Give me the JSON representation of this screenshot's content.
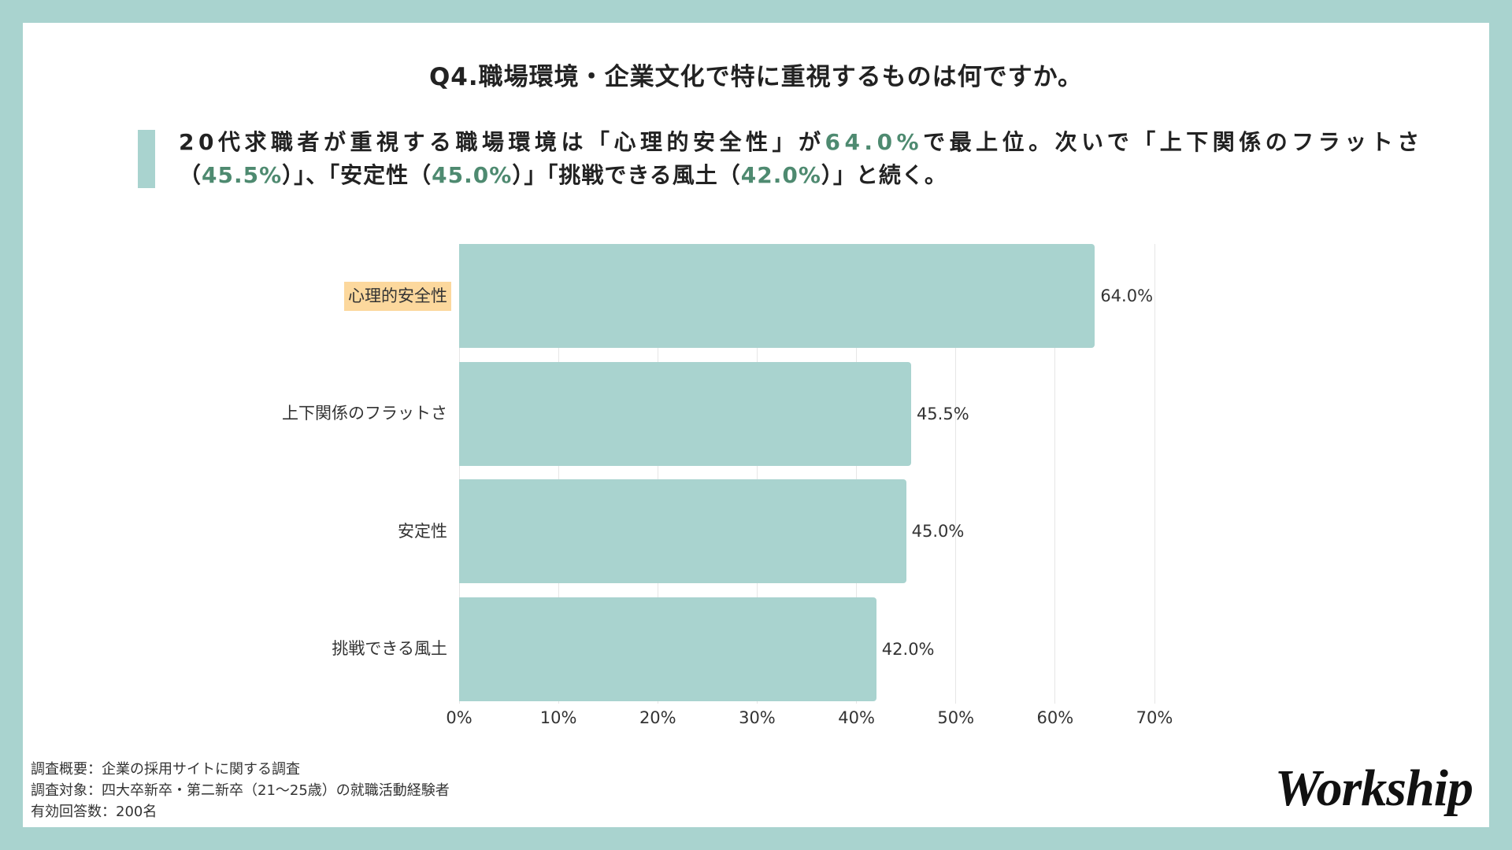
{
  "colors": {
    "frame": "#a9d3cf",
    "panel": "#ffffff",
    "summary_accent": "#a9d3cf",
    "emphasis": "#4e8a70",
    "text": "#222222"
  },
  "summary": {
    "lines": [
      [
        {
          "text": "20代求職者が重視する職場環境は「心理的安全性」が",
          "emphasis": false
        },
        {
          "text": "64.0%",
          "emphasis": true
        },
        {
          "text": "で最上位。次いで「上下関係のフラットさ",
          "emphasis": false
        }
      ],
      [
        {
          "text": "（",
          "emphasis": false
        },
        {
          "text": "45.5%",
          "emphasis": true
        },
        {
          "text": "）」、「安定性（",
          "emphasis": false
        },
        {
          "text": "45.0%",
          "emphasis": true
        },
        {
          "text": "）」「挑戦できる風土（",
          "emphasis": false
        },
        {
          "text": "42.0%",
          "emphasis": true
        },
        {
          "text": "）」と続く。",
          "emphasis": false
        }
      ]
    ]
  },
  "chart_data": {
    "type": "bar",
    "orientation": "horizontal",
    "title": "Q4.職場環境・企業文化で特に重視するものは何ですか。",
    "categories": [
      "心理的安全性",
      "上下関係のフラットさ",
      "安定性",
      "挑戦できる風土"
    ],
    "values": [
      64.0,
      45.5,
      45.0,
      42.0
    ],
    "value_labels": [
      "64.0%",
      "45.5%",
      "45.0%",
      "42.0%"
    ],
    "xlim": [
      0,
      70
    ],
    "xticks": [
      0,
      10,
      20,
      30,
      40,
      50,
      60,
      70
    ],
    "xtick_labels": [
      "0%",
      "10%",
      "20%",
      "30%",
      "40%",
      "50%",
      "60%",
      "70%"
    ],
    "grid": true,
    "legend": "none",
    "highlighted_category": "心理的安全性",
    "bar_color": "#a9d3cf",
    "highlight_label_color": "#fcd89d"
  },
  "footnotes": {
    "lines": [
      "調査概要：企業の採用サイトに関する調査",
      "調査対象：四大卒新卒・第二新卒（21〜25歳）の就職活動経験者",
      "有効回答数：200名"
    ]
  },
  "logo": {
    "text": "Workship"
  }
}
